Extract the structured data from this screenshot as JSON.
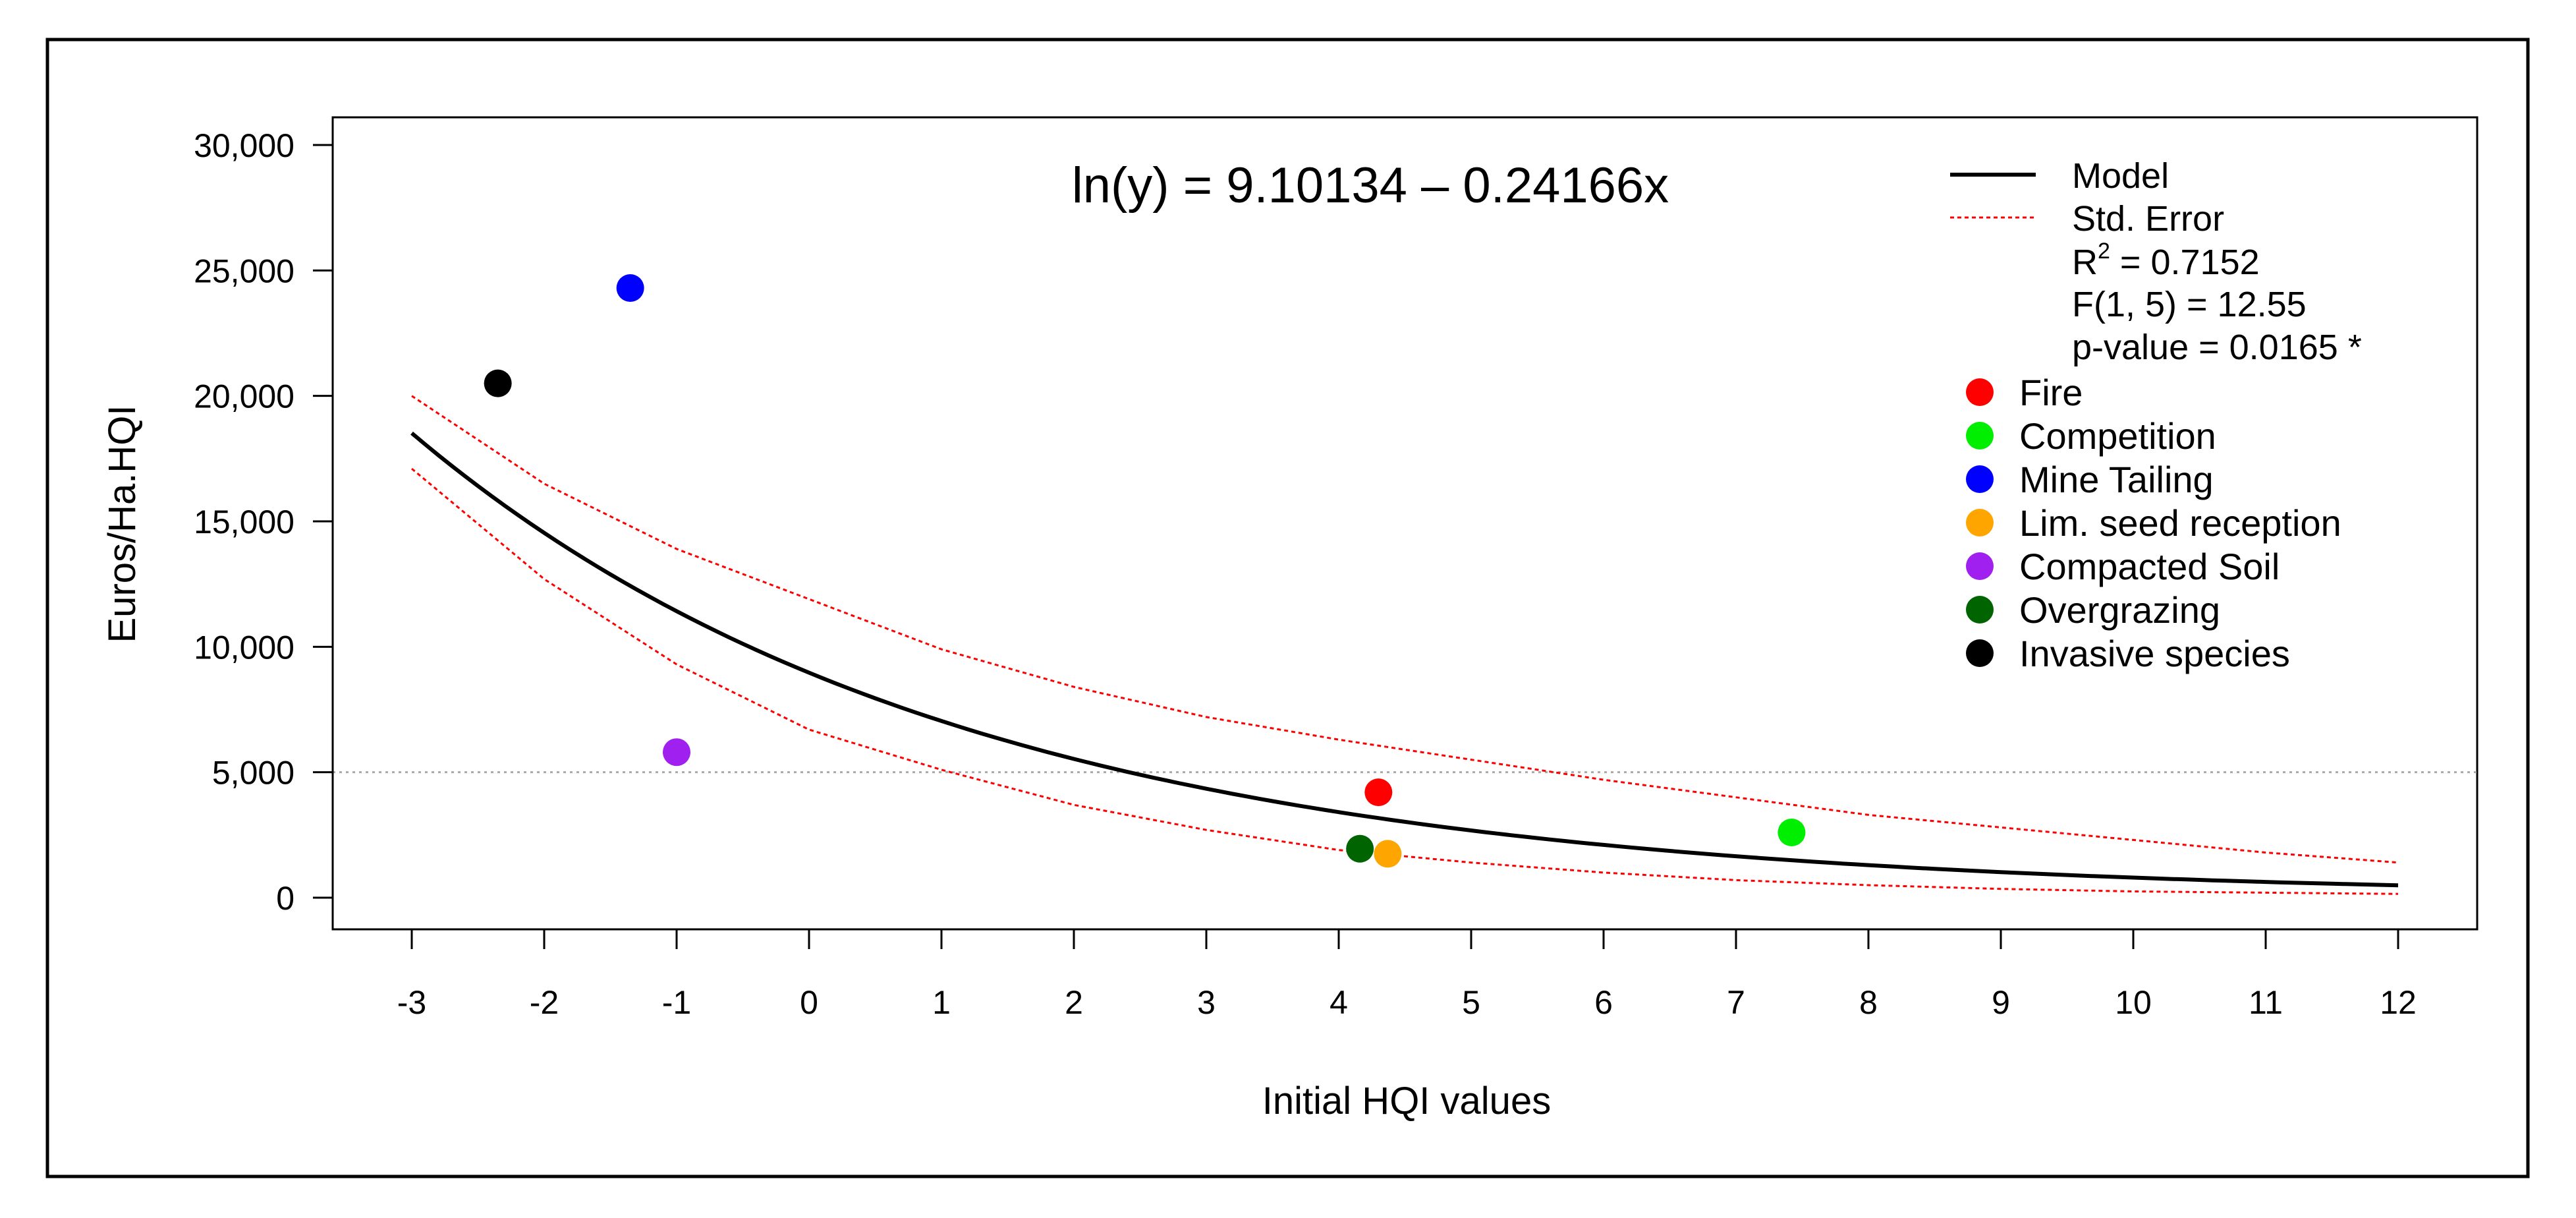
{
  "chart_data": {
    "type": "scatter",
    "equation": "ln(y) = 9.10134 – 0.24166x",
    "model": {
      "intercept": 9.10134,
      "slope": -0.24166
    },
    "xlabel": "Initial HQI values",
    "ylabel": "Euros/Ha.HQI",
    "xlim": [
      -3,
      12
    ],
    "ylim": [
      0,
      30000
    ],
    "xticks": [
      -3,
      -2,
      -1,
      0,
      1,
      2,
      3,
      4,
      5,
      6,
      7,
      8,
      9,
      10,
      11,
      12
    ],
    "xtick_labels": [
      "-3",
      "-2",
      "-1",
      "0",
      "1",
      "2",
      "3",
      "4",
      "5",
      "6",
      "7",
      "8",
      "9",
      "10",
      "11",
      "12"
    ],
    "yticks": [
      0,
      5000,
      10000,
      15000,
      20000,
      25000,
      30000
    ],
    "ytick_labels": [
      "0",
      "5,000",
      "10,000",
      "15,000",
      "20,000",
      "25,000",
      "30,000"
    ],
    "reference_line_y": 5000,
    "std_error": {
      "x": [
        -3,
        -2,
        -1,
        0,
        1,
        2,
        3,
        4,
        5,
        6,
        7,
        8,
        9,
        10,
        11,
        12
      ],
      "upper": [
        20000,
        16500,
        13900,
        11900,
        9900,
        8400,
        7200,
        6300,
        5500,
        4700,
        4000,
        3300,
        2800,
        2300,
        1800,
        1400
      ],
      "lower": [
        17100,
        12700,
        9300,
        6700,
        5100,
        3700,
        2700,
        1900,
        1400,
        1000,
        700,
        500,
        350,
        250,
        200,
        150
      ]
    },
    "series": [
      {
        "name": "Fire",
        "color": "#ff0000",
        "x": 4.3,
        "y": 4200
      },
      {
        "name": "Competition",
        "color": "#00ee00",
        "x": 7.42,
        "y": 2600
      },
      {
        "name": "Mine Tailing",
        "color": "#0000ff",
        "x": -1.35,
        "y": 24300
      },
      {
        "name": "Lim. seed reception",
        "color": "#ffa500",
        "x": 4.37,
        "y": 1750
      },
      {
        "name": "Compacted Soil",
        "color": "#a020f0",
        "x": -1.0,
        "y": 5800
      },
      {
        "name": "Overgrazing",
        "color": "#006400",
        "x": 4.16,
        "y": 1950
      },
      {
        "name": "Invasive species",
        "color": "#000000",
        "x": -2.35,
        "y": 20500
      }
    ],
    "legend": {
      "model_label": "Model",
      "std_error_label": "Std. Error",
      "r2_prefix": "R",
      "r2_sup": "2",
      "r2_value": " = 0.7152",
      "f_stat": "F(1, 5) = 12.55",
      "p_value": "p-value = 0.0165 *"
    }
  }
}
